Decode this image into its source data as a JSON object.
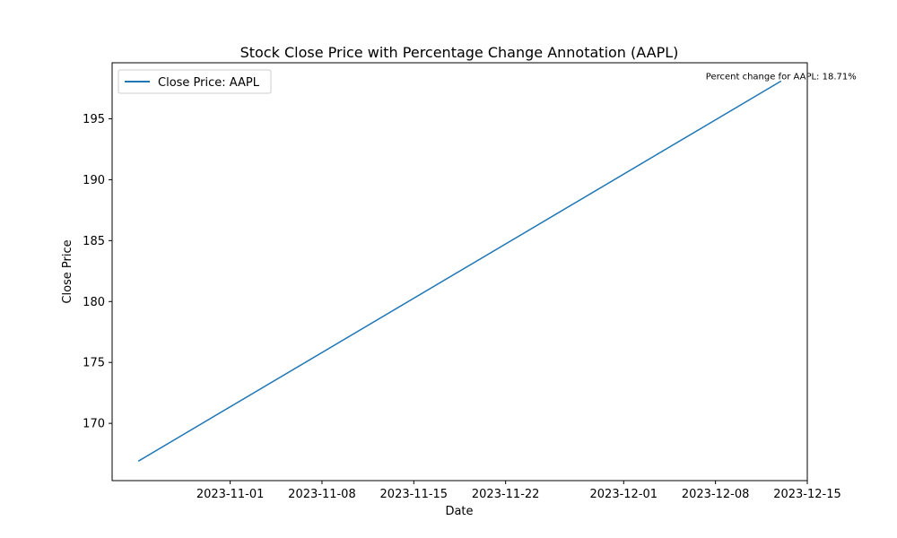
{
  "chart_data": {
    "type": "line",
    "title": "Stock Close Price with Percentage Change Annotation (AAPL)",
    "xlabel": "Date",
    "ylabel": "Close Price",
    "x_ticks": [
      "2023-11-01",
      "2023-11-08",
      "2023-11-15",
      "2023-11-22",
      "2023-12-01",
      "2023-12-08",
      "2023-12-15"
    ],
    "y_ticks": [
      170,
      175,
      180,
      185,
      190,
      195
    ],
    "xlim": [
      "2023-10-23",
      "2023-12-15"
    ],
    "ylim": [
      165.3,
      199.6
    ],
    "series": [
      {
        "name": "Close Price: AAPL",
        "color": "#1f77b4",
        "x": [
          "2023-10-25",
          "2023-12-13"
        ],
        "y": [
          166.9,
          198.1
        ]
      }
    ],
    "annotation": "Percent change for AAPL: 18.71%",
    "legend": "top-left",
    "grid": false
  }
}
